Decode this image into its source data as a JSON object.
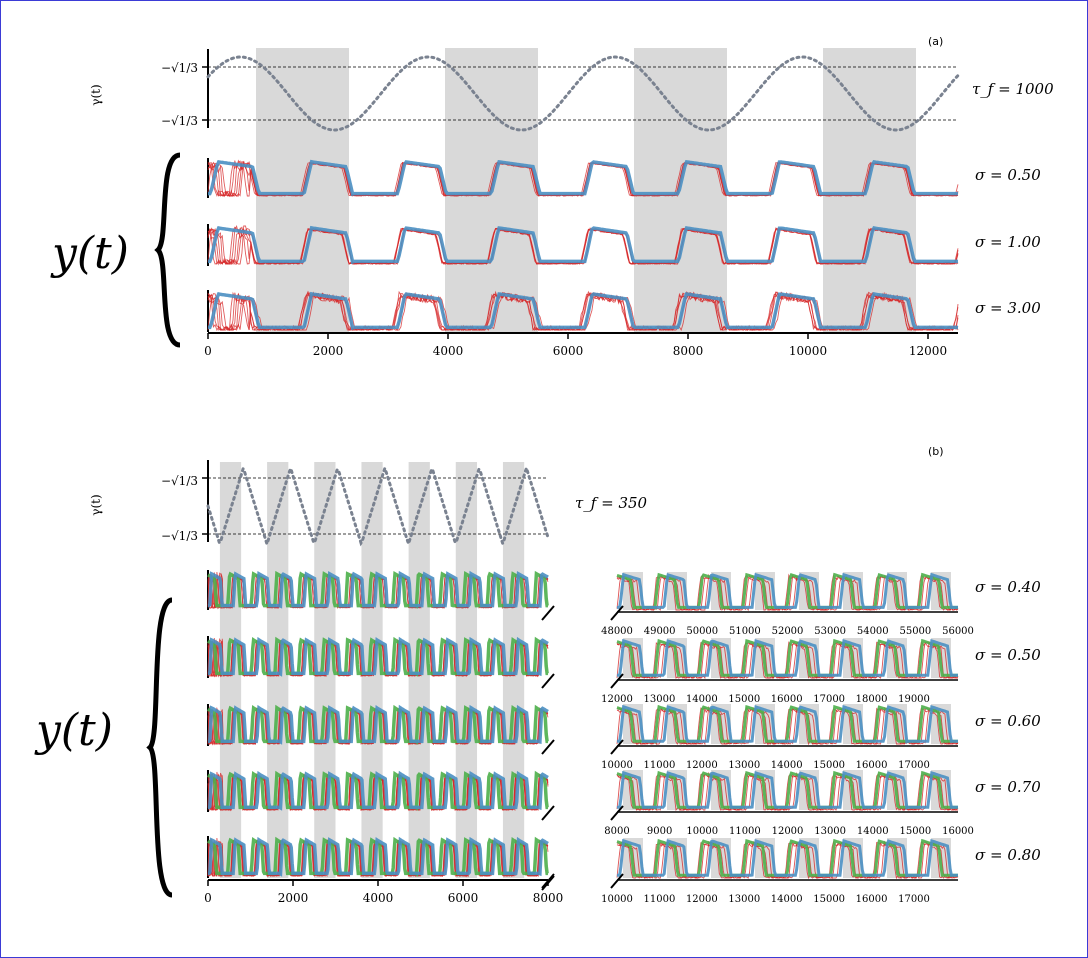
{
  "chart_data": [
    {
      "type": "line",
      "panel": "(a)",
      "tau_label": "τ_f = 1000",
      "gamma_axis_label": "γ(t)",
      "gamma_ticks": [
        "−√1/3",
        "−√1/3"
      ],
      "y_group_label": "y(t)",
      "sigmas": [
        "σ = 0.50",
        "σ = 1.00",
        "σ = 3.00"
      ],
      "xlim": [
        0,
        12500
      ],
      "xticks": [
        0,
        2000,
        4000,
        6000,
        8000,
        10000,
        12000
      ],
      "period": 3120,
      "shaded_intervals": [
        [
          800,
          2350
        ],
        [
          3950,
          5500
        ],
        [
          7100,
          8650
        ],
        [
          10250,
          11800
        ]
      ],
      "colors": {
        "model": "#4a8fc2",
        "sim": "#d62728",
        "gamma": "#7a8290"
      }
    },
    {
      "type": "line",
      "panel": "(b)",
      "tau_label": "τ_f = 350",
      "gamma_axis_label": "γ(t)",
      "gamma_ticks": [
        "−√1/3",
        "−√1/3"
      ],
      "y_group_label": "y(t)",
      "sigmas": [
        "σ = 0.40",
        "σ = 0.50",
        "σ = 0.60",
        "σ = 0.70",
        "σ = 0.80"
      ],
      "xlim": [
        0,
        8000
      ],
      "xticks": [
        0,
        2000,
        4000,
        6000,
        8000
      ],
      "period": 1110,
      "shaded_intervals": [
        [
          280,
          780
        ],
        [
          1390,
          1890
        ],
        [
          2500,
          3000
        ],
        [
          3610,
          4110
        ],
        [
          4720,
          5220
        ],
        [
          5830,
          6330
        ],
        [
          6940,
          7440
        ]
      ],
      "inset_xticks": [
        [
          "48000",
          "49000",
          "50000",
          "51000",
          "52000",
          "53000",
          "54000",
          "55000",
          "56000"
        ],
        [
          "12000",
          "13000",
          "14000",
          "15000",
          "16000",
          "17000",
          "18000",
          "19000"
        ],
        [
          "10000",
          "11000",
          "12000",
          "13000",
          "14000",
          "15000",
          "16000",
          "17000"
        ],
        [
          "8000",
          "9000",
          "10000",
          "11000",
          "12000",
          "13000",
          "14000",
          "15000",
          "16000"
        ],
        [
          "10000",
          "11000",
          "12000",
          "13000",
          "14000",
          "15000",
          "16000",
          "17000"
        ]
      ],
      "colors": {
        "model": "#4a8fc2",
        "model2": "#4daf4a",
        "sim": "#d62728",
        "gamma": "#7a8290"
      }
    }
  ]
}
